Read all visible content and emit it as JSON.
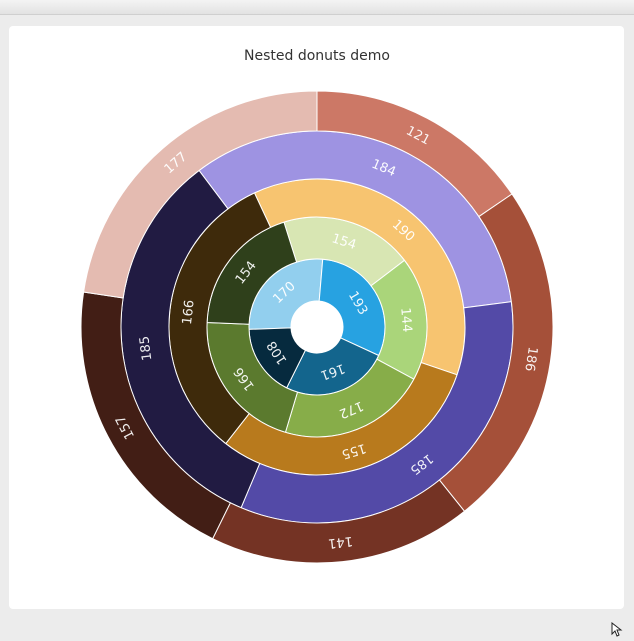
{
  "chart_data": {
    "type": "pie",
    "subtype": "nested-donut",
    "title": "Nested donuts demo",
    "rings": [
      {
        "slices": [
          {
            "value": 170,
            "color": "#92cfee"
          },
          {
            "value": 193,
            "color": "#27a2e1"
          },
          {
            "value": 161,
            "color": "#13658d"
          },
          {
            "value": 108,
            "color": "#062a3e"
          }
        ]
      },
      {
        "slices": [
          {
            "value": 154,
            "color": "#d8e6b3"
          },
          {
            "value": 144,
            "color": "#aad57a"
          },
          {
            "value": 172,
            "color": "#87ad49"
          },
          {
            "value": 166,
            "color": "#5b7a2e"
          },
          {
            "value": 154,
            "color": "#2f401b"
          }
        ]
      },
      {
        "slices": [
          {
            "value": 190,
            "color": "#f7c470"
          },
          {
            "value": 155,
            "color": "#b87a1d"
          },
          {
            "value": 166,
            "color": "#3e2a0b"
          }
        ]
      },
      {
        "slices": [
          {
            "value": 184,
            "color": "#9e93e2"
          },
          {
            "value": 185,
            "color": "#534aa7"
          },
          {
            "value": 185,
            "color": "#211b42"
          }
        ]
      },
      {
        "slices": [
          {
            "value": 121,
            "color": "#cc7866"
          },
          {
            "value": 186,
            "color": "#a55039"
          },
          {
            "value": 141,
            "color": "#743324"
          },
          {
            "value": 157,
            "color": "#421e15"
          },
          {
            "value": 177,
            "color": "#e4bbb1"
          }
        ]
      }
    ]
  }
}
